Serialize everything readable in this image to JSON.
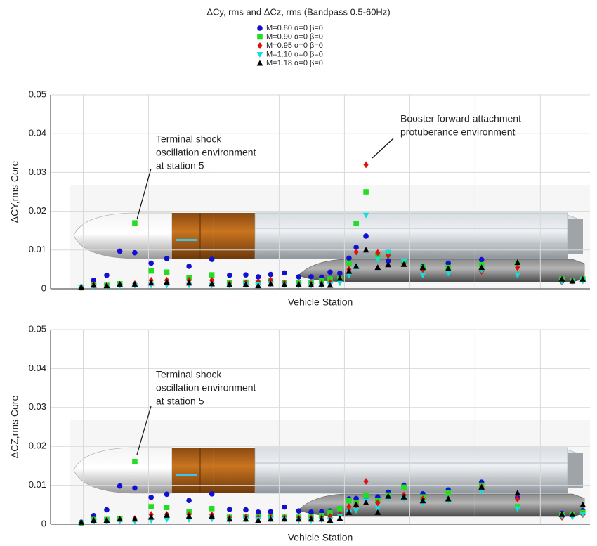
{
  "chart_data": [
    {
      "type": "scatter",
      "title": "ΔCy, rms and ΔCz, rms (Bandpass 0.5-60Hz)",
      "xlabel": "Vehicle Station",
      "ylabel": "ΔCY,rms Core",
      "annotations": [
        {
          "text": [
            "Terminal shock",
            "oscillation environment",
            "at station 5"
          ]
        },
        {
          "text": [
            "Booster forward attachment",
            "protuberance environment"
          ]
        }
      ],
      "xlim": [
        0,
        8.26
      ],
      "xticks": [
        0.5,
        1.5,
        2.5,
        3.5,
        4.5,
        5.5,
        6.5,
        7.5
      ],
      "ylim": [
        0,
        0.05
      ],
      "yticks": [
        0,
        0.01,
        0.02,
        0.03,
        0.04,
        0.05
      ],
      "grid": true,
      "x": [
        0.47,
        0.66,
        0.86,
        1.06,
        1.29,
        1.54,
        1.78,
        2.12,
        2.47,
        2.74,
        2.99,
        3.18,
        3.37,
        3.58,
        3.8,
        3.99,
        4.15,
        4.28,
        4.43,
        4.57,
        4.68,
        4.83,
        5.01,
        5.17,
        5.41,
        5.7,
        6.09,
        6.6,
        7.15,
        7.83,
        7.99,
        8.15
      ],
      "series": [
        {
          "name": "M=0.80 α=0 β=0",
          "color": "#1010d0",
          "marker": "o",
          "values": [
            0.0005,
            0.0022,
            0.0035,
            0.0097,
            0.0093,
            0.0066,
            0.0078,
            0.0058,
            0.0076,
            0.0035,
            0.0036,
            0.0031,
            0.0037,
            0.0041,
            0.0031,
            0.0031,
            0.003,
            0.0043,
            0.004,
            0.0079,
            0.0107,
            0.0136,
            0.0088,
            0.0072,
            0.0069,
            0.0057,
            0.0066,
            0.0075,
            0.0065,
            0.002,
            0.002,
            0.0025
          ]
        },
        {
          "name": "M=0.90 α=0 β=0",
          "color": "#22dd22",
          "marker": "s",
          "values": [
            0.0003,
            0.001,
            0.0009,
            0.0013,
            0.017,
            0.0046,
            0.0043,
            0.0028,
            0.0036,
            0.0015,
            0.0017,
            0.0016,
            0.0022,
            0.0016,
            0.0015,
            0.0015,
            0.0021,
            0.0025,
            0.0025,
            0.0066,
            0.0168,
            0.025,
            0.0085,
            0.0087,
            0.007,
            0.0055,
            0.0055,
            0.0062,
            0.0065,
            0.0025,
            0.002,
            0.0025
          ]
        },
        {
          "name": "M=0.95 α=0 β=0",
          "color": "#dd1111",
          "marker": "D",
          "values": [
            0.0003,
            0.001,
            0.0008,
            0.001,
            0.0013,
            0.0022,
            0.0022,
            0.0022,
            0.0022,
            0.0012,
            0.0015,
            0.0018,
            0.0022,
            0.0015,
            0.0011,
            0.0012,
            0.0013,
            0.0016,
            0.0021,
            0.005,
            0.0095,
            0.032,
            0.0093,
            0.0086,
            0.0065,
            0.005,
            0.005,
            0.0045,
            0.0055,
            0.0018,
            0.002,
            0.0022
          ]
        },
        {
          "name": "M=1.10 α=0 β=0",
          "color": "#11dddd",
          "marker": "v",
          "values": [
            0.0002,
            0.0006,
            0.0005,
            0.0007,
            0.0008,
            0.0009,
            0.0009,
            0.0009,
            0.0009,
            0.0007,
            0.001,
            0.001,
            0.0013,
            0.0009,
            0.0008,
            0.0008,
            0.0009,
            0.001,
            0.0015,
            0.0035,
            0.0055,
            0.019,
            0.0075,
            0.0094,
            0.007,
            0.0035,
            0.004,
            0.0048,
            0.0035,
            0.0018,
            0.0018,
            0.002
          ]
        },
        {
          "name": "M=1.18 α=0 β=0",
          "color": "#000000",
          "marker": "^",
          "values": [
            0.0004,
            0.0009,
            0.0008,
            0.0012,
            0.0012,
            0.0015,
            0.0017,
            0.0015,
            0.0013,
            0.0011,
            0.0011,
            0.0008,
            0.0013,
            0.0011,
            0.0011,
            0.001,
            0.0012,
            0.0009,
            0.0027,
            0.0045,
            0.0058,
            0.01,
            0.0055,
            0.0062,
            0.0063,
            0.0055,
            0.0052,
            0.0055,
            0.0068,
            0.0025,
            0.002,
            0.0025
          ]
        }
      ]
    },
    {
      "type": "scatter",
      "xlabel": "Vehicle Station",
      "ylabel": "ΔCZ,rms Core",
      "annotations": [
        {
          "text": [
            "Terminal shock",
            "oscillation environment",
            "at station 5"
          ]
        }
      ],
      "xlim": [
        0,
        8.26
      ],
      "xticks": [
        0.5,
        1.5,
        2.5,
        3.5,
        4.5,
        5.5,
        6.5,
        7.5
      ],
      "ylim": [
        0,
        0.05
      ],
      "yticks": [
        0,
        0.01,
        0.02,
        0.03,
        0.04,
        0.05
      ],
      "grid": true,
      "x": [
        0.47,
        0.66,
        0.86,
        1.06,
        1.29,
        1.54,
        1.78,
        2.12,
        2.47,
        2.74,
        2.99,
        3.18,
        3.37,
        3.58,
        3.8,
        3.99,
        4.15,
        4.28,
        4.43,
        4.57,
        4.68,
        4.83,
        5.01,
        5.17,
        5.41,
        5.7,
        6.09,
        6.6,
        7.15,
        7.83,
        7.99,
        8.15
      ],
      "series": [
        {
          "color": "#1010d0",
          "marker": "o",
          "values": [
            0.0005,
            0.0022,
            0.0037,
            0.0098,
            0.0093,
            0.0069,
            0.0077,
            0.0061,
            0.0078,
            0.0038,
            0.0037,
            0.0031,
            0.0032,
            0.0044,
            0.0034,
            0.0031,
            0.0032,
            0.0034,
            0.004,
            0.0065,
            0.0066,
            0.007,
            0.007,
            0.0082,
            0.01,
            0.0078,
            0.0088,
            0.0108,
            0.0068,
            0.0028,
            0.0025,
            0.0035
          ]
        },
        {
          "color": "#22dd22",
          "marker": "s",
          "values": [
            0.0003,
            0.0012,
            0.0012,
            0.0015,
            0.0161,
            0.0045,
            0.0043,
            0.0031,
            0.004,
            0.0018,
            0.002,
            0.002,
            0.002,
            0.0018,
            0.0018,
            0.0018,
            0.0022,
            0.003,
            0.004,
            0.006,
            0.0055,
            0.0075,
            0.006,
            0.0075,
            0.0095,
            0.007,
            0.008,
            0.01,
            0.0045,
            0.0025,
            0.0025,
            0.003
          ]
        },
        {
          "color": "#dd1111",
          "marker": "D",
          "values": [
            0.0003,
            0.001,
            0.001,
            0.0012,
            0.0014,
            0.0025,
            0.0025,
            0.0025,
            0.0024,
            0.0016,
            0.0018,
            0.0017,
            0.0018,
            0.0017,
            0.0015,
            0.0015,
            0.0016,
            0.002,
            0.0025,
            0.0045,
            0.005,
            0.011,
            0.0055,
            0.007,
            0.0075,
            0.0065,
            0.0065,
            0.0095,
            0.0065,
            0.0018,
            0.0022,
            0.0025
          ]
        },
        {
          "color": "#11dddd",
          "marker": "v",
          "values": [
            0.0002,
            0.0006,
            0.0006,
            0.0008,
            0.0008,
            0.001,
            0.0012,
            0.0012,
            0.0013,
            0.001,
            0.0012,
            0.0012,
            0.0013,
            0.0012,
            0.001,
            0.001,
            0.0011,
            0.0011,
            0.002,
            0.003,
            0.0035,
            0.006,
            0.004,
            0.0065,
            0.0065,
            0.0055,
            0.006,
            0.0085,
            0.004,
            0.002,
            0.0018,
            0.0025
          ]
        },
        {
          "color": "#000000",
          "marker": "^",
          "values": [
            0.0005,
            0.001,
            0.001,
            0.0013,
            0.0013,
            0.0018,
            0.0023,
            0.002,
            0.002,
            0.0013,
            0.0013,
            0.001,
            0.0013,
            0.0013,
            0.0013,
            0.0013,
            0.0013,
            0.001,
            0.0015,
            0.003,
            0.005,
            0.0055,
            0.003,
            0.0072,
            0.007,
            0.006,
            0.0065,
            0.0095,
            0.008,
            0.0025,
            0.0025,
            0.005
          ]
        }
      ]
    }
  ]
}
